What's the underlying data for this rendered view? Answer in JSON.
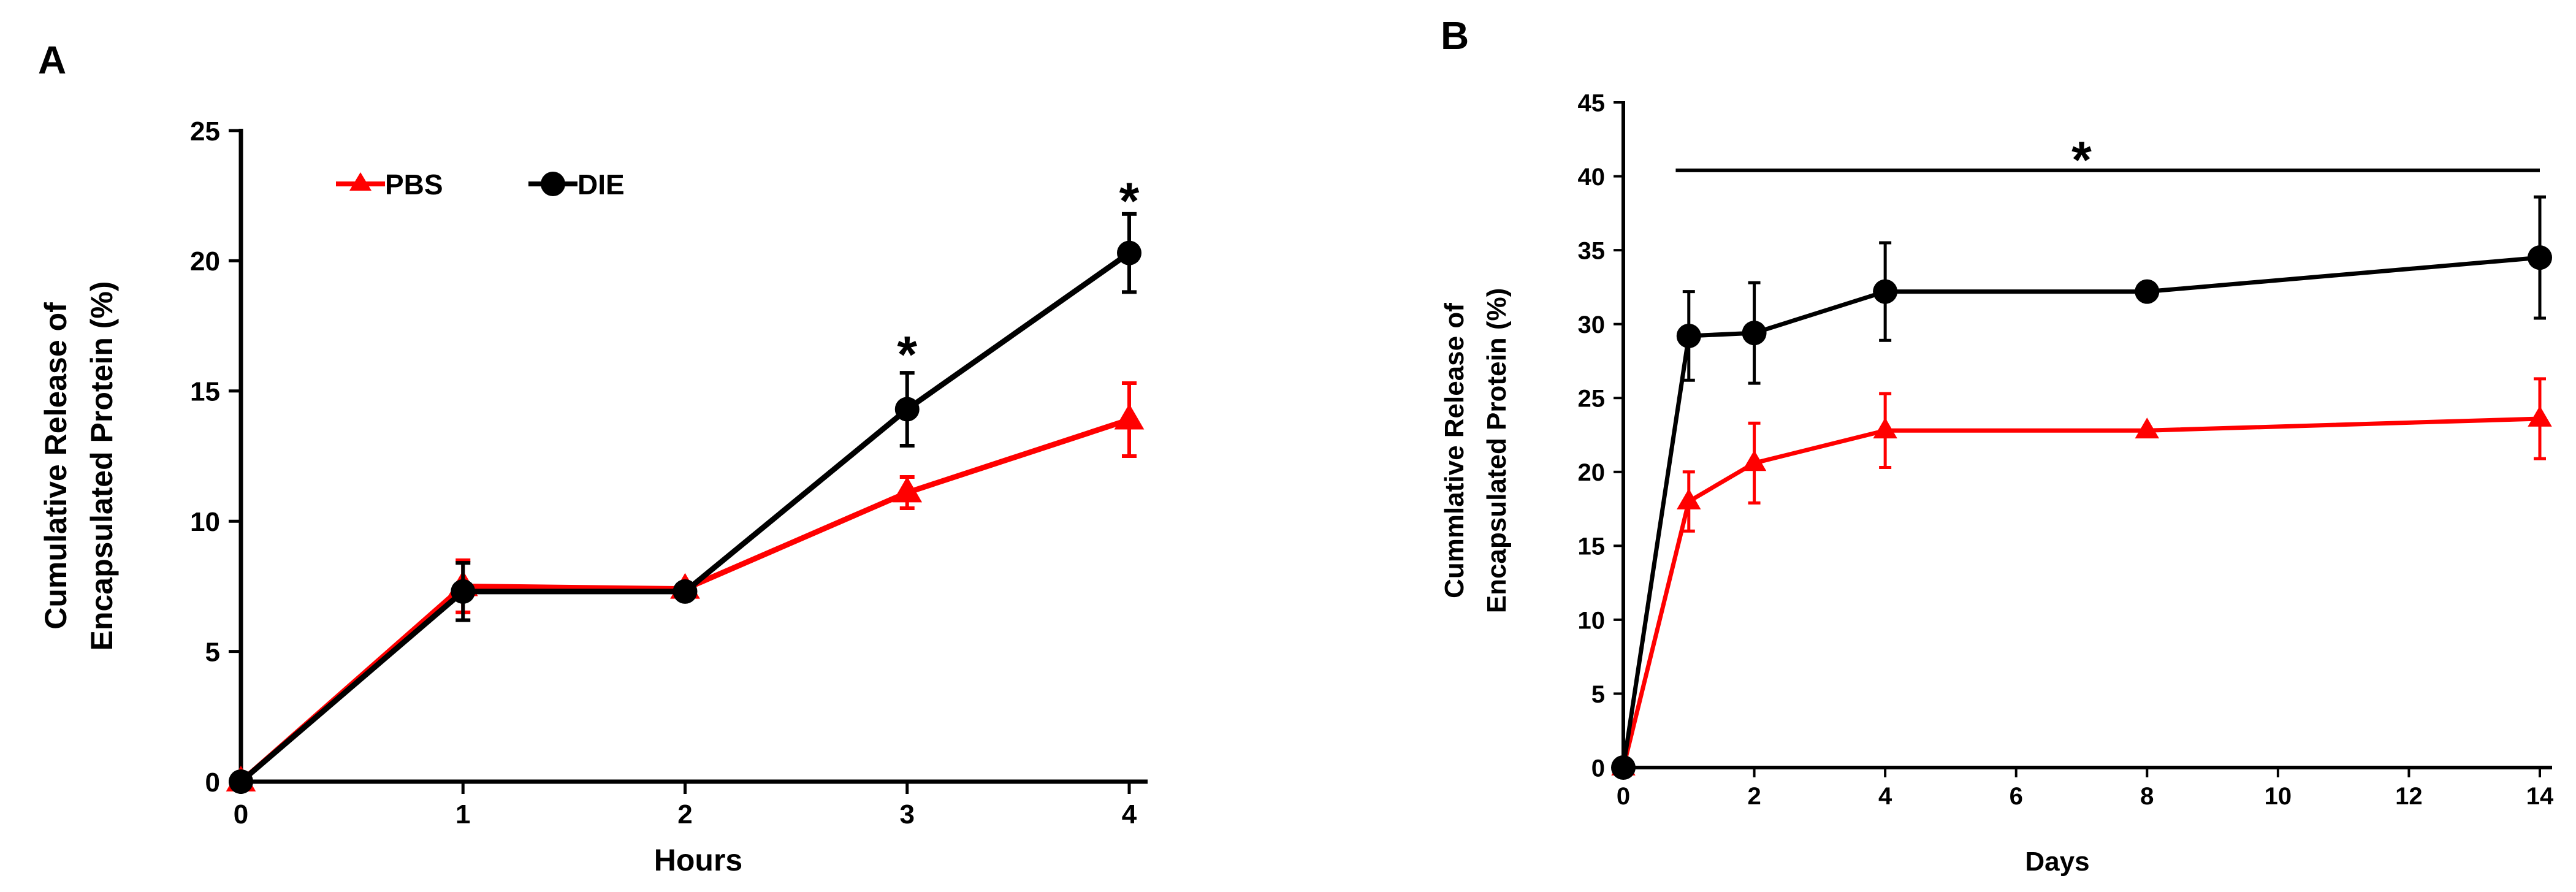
{
  "chart_data": [
    {
      "type": "line",
      "panel": "A",
      "xlabel": "Hours",
      "ylabel_lines": [
        "Cumulative Release of",
        "Encapsulated Protein (%)"
      ],
      "x": [
        0,
        1,
        2,
        3,
        4
      ],
      "xticks": [
        0,
        1,
        2,
        3,
        4
      ],
      "xlim": [
        0,
        4
      ],
      "yticks": [
        0,
        5,
        10,
        15,
        20,
        25
      ],
      "ylim": [
        0,
        25
      ],
      "grid": false,
      "legend_position": "top-left",
      "series": [
        {
          "name": "PBS",
          "color": "#ff0000",
          "marker": "triangle",
          "values": [
            0,
            7.5,
            7.4,
            11.1,
            13.9
          ],
          "errors": [
            0,
            1.0,
            0,
            0.6,
            1.4
          ]
        },
        {
          "name": "DIE",
          "color": "#000000",
          "marker": "circle",
          "values": [
            0,
            7.3,
            7.3,
            14.3,
            20.3
          ],
          "errors": [
            0,
            1.1,
            0,
            1.4,
            1.5
          ]
        }
      ],
      "annotations": [
        {
          "text": "*",
          "x": 3,
          "y": 16.9
        },
        {
          "text": "*",
          "x": 4,
          "y": 22.8
        }
      ]
    },
    {
      "type": "line",
      "panel": "B",
      "xlabel": "Days",
      "ylabel_lines": [
        "Cummlative  Release of",
        "Encapsulated Protein (%)"
      ],
      "x": [
        0,
        1,
        2,
        4,
        8,
        14
      ],
      "xticks": [
        0,
        2,
        4,
        6,
        8,
        10,
        12,
        14
      ],
      "xlim": [
        0,
        14
      ],
      "yticks": [
        0,
        5,
        10,
        15,
        20,
        25,
        30,
        35,
        40,
        45
      ],
      "ylim": [
        0,
        45
      ],
      "grid": false,
      "series": [
        {
          "name": "PBS",
          "color": "#ff0000",
          "marker": "triangle",
          "values": [
            0,
            18.0,
            20.6,
            22.8,
            22.8,
            23.6
          ],
          "errors": [
            0,
            2.0,
            2.7,
            2.5,
            0,
            2.7
          ]
        },
        {
          "name": "DIE",
          "color": "#000000",
          "marker": "circle",
          "values": [
            0,
            29.2,
            29.4,
            32.2,
            32.2,
            34.5
          ],
          "errors": [
            0,
            3.0,
            3.4,
            3.3,
            0,
            4.1
          ]
        }
      ],
      "bracket": {
        "x_start": 0.8,
        "x_end": 14,
        "y": 40.4
      },
      "annotations": [
        {
          "text": "*",
          "x": 7,
          "y": 42.0
        }
      ]
    }
  ]
}
